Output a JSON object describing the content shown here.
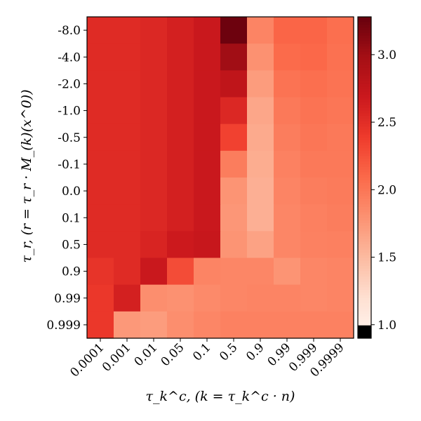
{
  "chart_data": {
    "type": "heatmap",
    "xlabel": "τ_k^c,  (k = τ_k^c · n)",
    "ylabel": "τ_r,  (r = τ_r · M_(k)(x^0))",
    "x_categories": [
      "0.0001",
      "0.001",
      "0.01",
      "0.05",
      "0.1",
      "0.5",
      "0.9",
      "0.99",
      "0.999",
      "0.9999"
    ],
    "y_categories": [
      "-8.0",
      "-4.0",
      "-2.0",
      "-1.0",
      "-0.5",
      "-0.1",
      "0.0",
      "0.1",
      "0.5",
      "0.9",
      "0.99",
      "0.999"
    ],
    "values": [
      [
        2.52,
        2.52,
        2.55,
        2.62,
        2.7,
        3.25,
        1.9,
        2.12,
        2.12,
        2.05
      ],
      [
        2.52,
        2.52,
        2.55,
        2.62,
        2.7,
        3.0,
        1.8,
        2.08,
        2.1,
        2.04
      ],
      [
        2.52,
        2.52,
        2.55,
        2.62,
        2.7,
        2.78,
        1.72,
        2.02,
        2.05,
        2.02
      ],
      [
        2.52,
        2.52,
        2.55,
        2.62,
        2.7,
        2.55,
        1.65,
        1.98,
        2.02,
        2.0
      ],
      [
        2.52,
        2.52,
        2.55,
        2.62,
        2.7,
        2.35,
        1.62,
        1.95,
        2.0,
        1.98
      ],
      [
        2.52,
        2.52,
        2.55,
        2.62,
        2.7,
        1.95,
        1.6,
        1.92,
        1.98,
        1.98
      ],
      [
        2.52,
        2.52,
        2.55,
        2.62,
        2.7,
        1.78,
        1.58,
        1.9,
        1.95,
        1.96
      ],
      [
        2.52,
        2.52,
        2.55,
        2.62,
        2.7,
        1.76,
        1.58,
        1.88,
        1.93,
        1.95
      ],
      [
        2.52,
        2.52,
        2.58,
        2.68,
        2.72,
        1.78,
        1.68,
        1.88,
        1.92,
        1.93
      ],
      [
        2.45,
        2.52,
        2.7,
        2.28,
        1.9,
        1.88,
        1.88,
        1.78,
        1.88,
        1.9
      ],
      [
        2.42,
        2.62,
        1.82,
        1.8,
        1.85,
        1.88,
        1.9,
        1.9,
        1.88,
        1.9
      ],
      [
        2.42,
        1.75,
        1.72,
        1.82,
        1.88,
        1.92,
        1.92,
        1.92,
        1.92,
        1.92
      ]
    ],
    "colorbar": {
      "ticks": [
        "1.0",
        "1.5",
        "2.0",
        "2.5",
        "3.0"
      ],
      "range": [
        0.9,
        3.28
      ],
      "cmap": "Reds",
      "under_color": "#000000"
    }
  }
}
